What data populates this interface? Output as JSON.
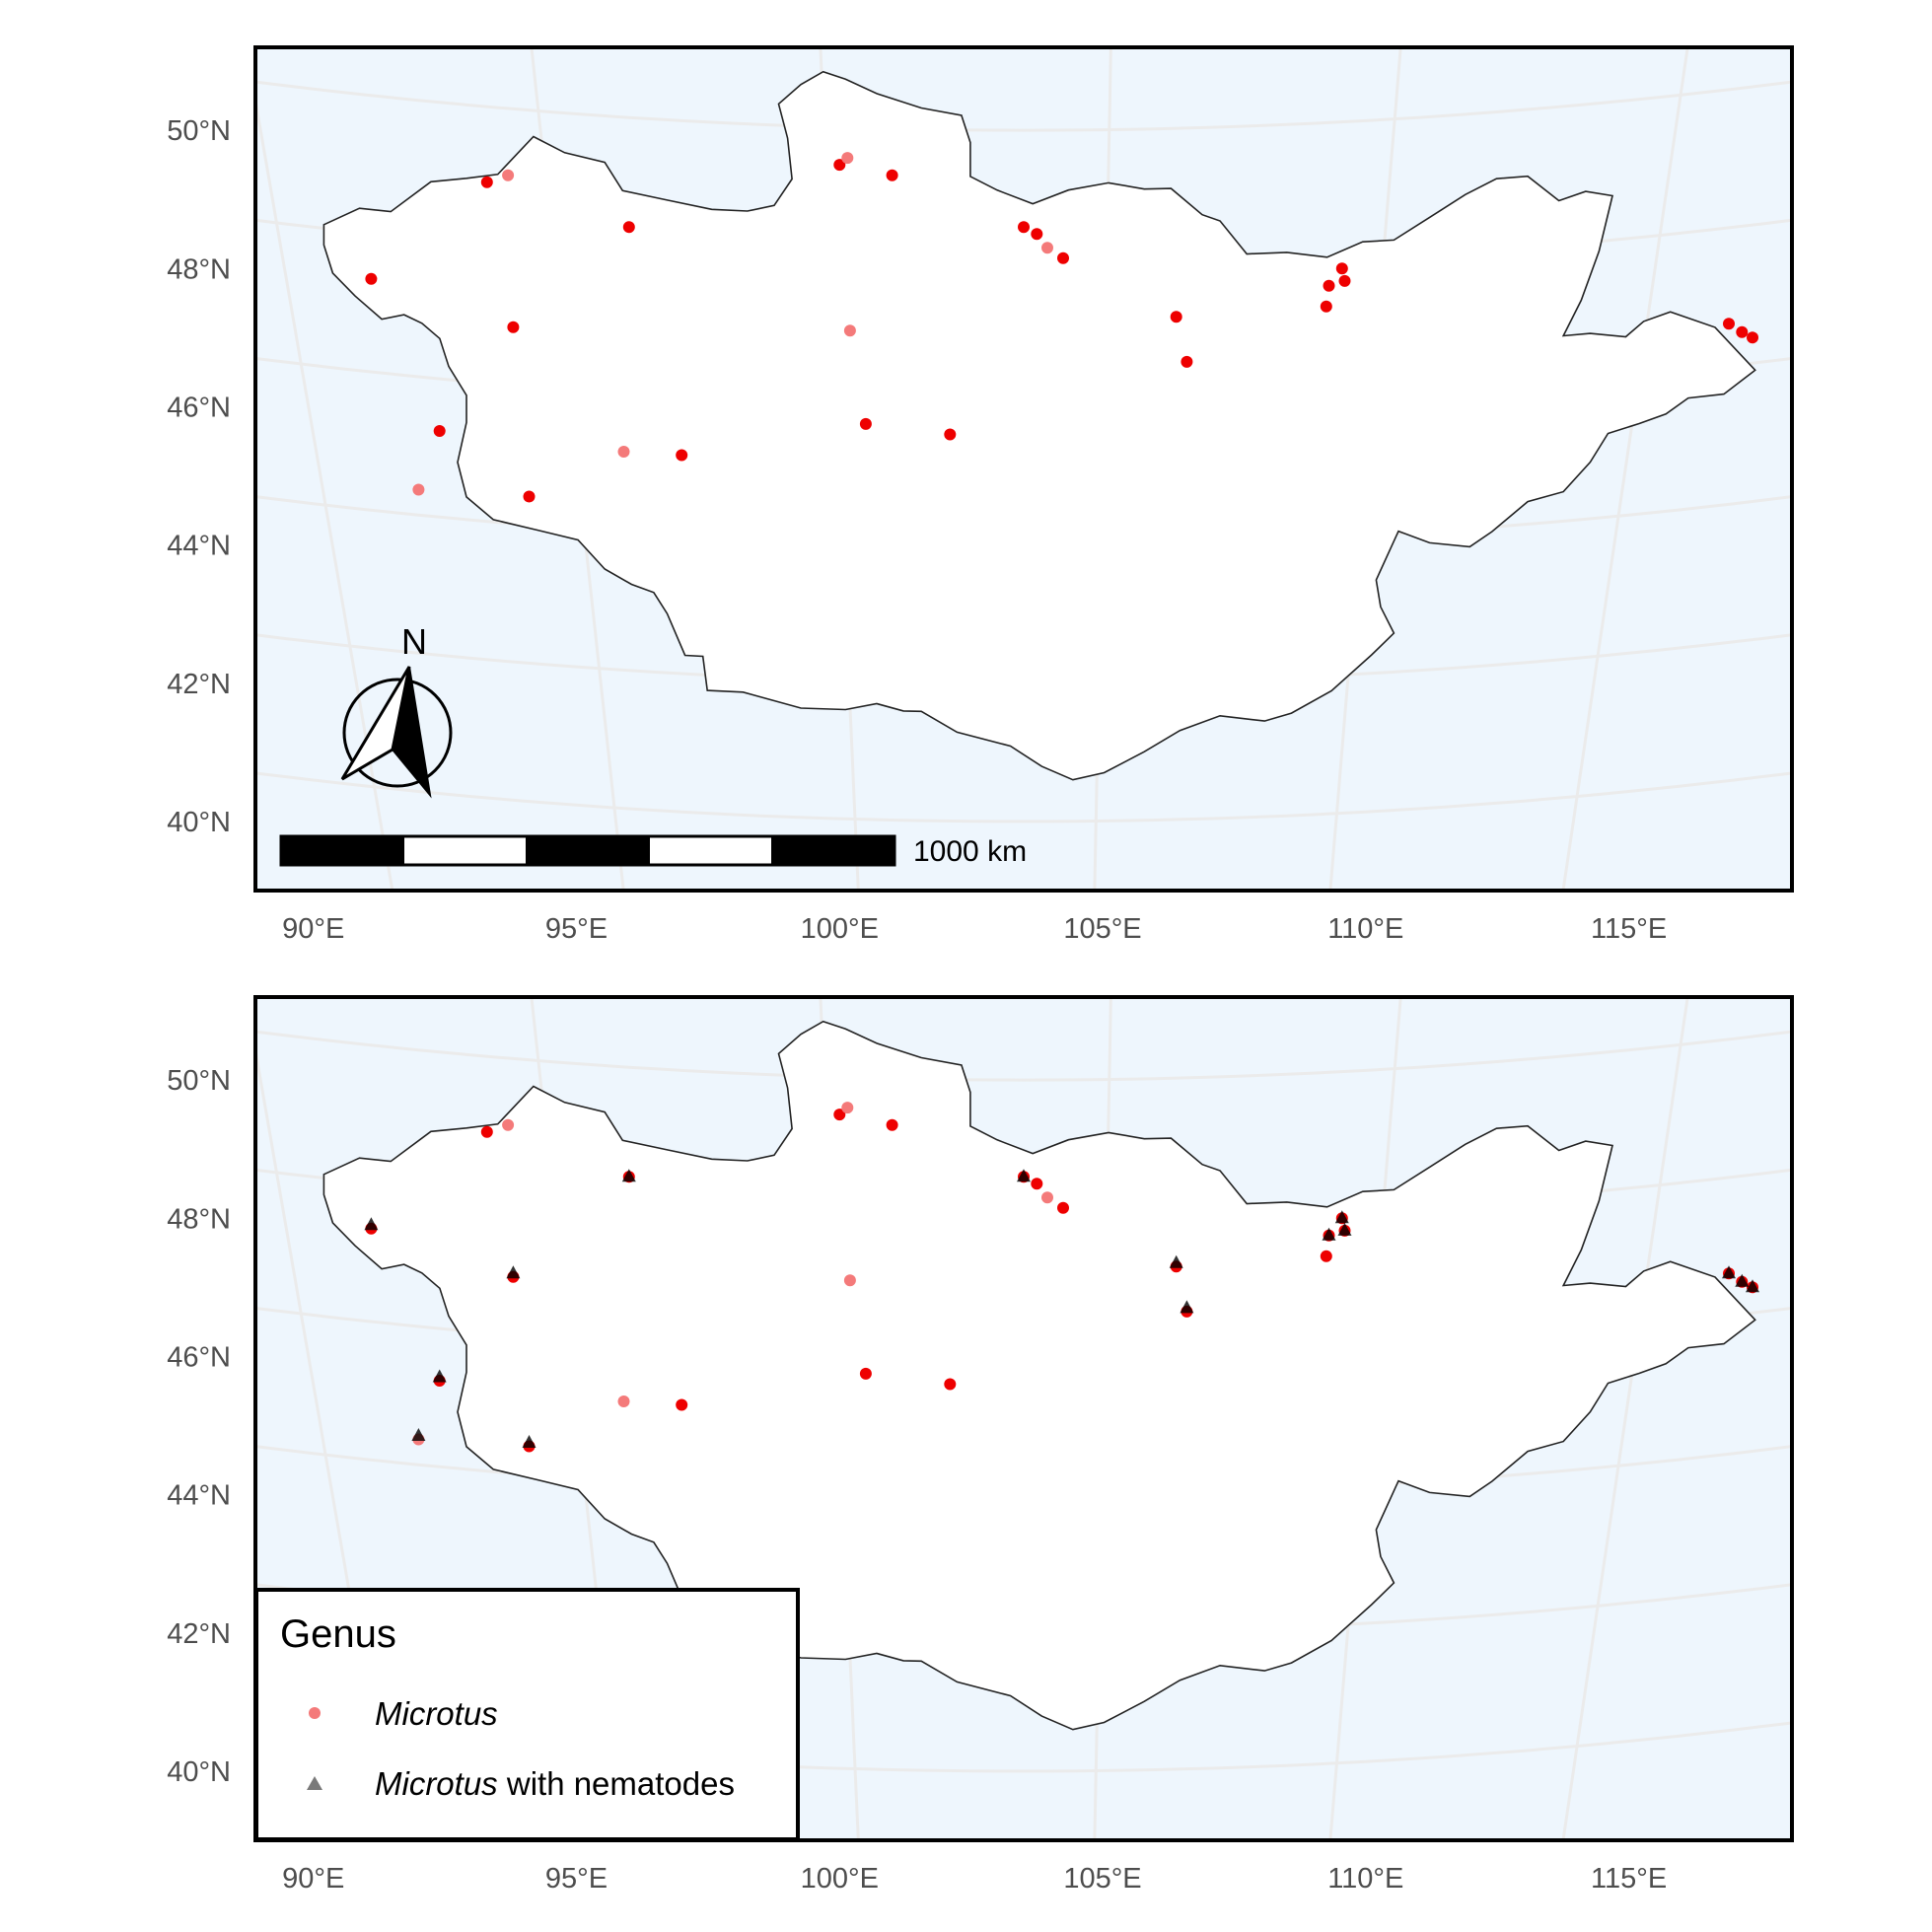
{
  "x_ticks": [
    "90°E",
    "95°E",
    "100°E",
    "105°E",
    "110°E",
    "115°E"
  ],
  "y_ticks": [
    "40°N",
    "42°N",
    "44°N",
    "46°N",
    "48°N",
    "50°N"
  ],
  "scale_bar": {
    "label": "1000 km"
  },
  "north_arrow": {
    "label": "N"
  },
  "legend": {
    "title": "Genus",
    "items": [
      {
        "italic": "Microtus",
        "rest": ""
      },
      {
        "italic": "Microtus",
        "rest": " with nematodes"
      }
    ]
  },
  "colors": {
    "ocean": "#eef6fd",
    "land": "#ffffff",
    "graticule": "#ebebeb",
    "point_bright": "#ee0000",
    "point_light": "#f47a7a",
    "triangle": "#000000",
    "legend_triangle": "#7a7a7a"
  },
  "chart_data": [
    {
      "type": "scatter",
      "panel": "top",
      "x_axis": "longitude (°E)",
      "y_axis": "latitude (°N)",
      "xlim": [
        88.9,
        118.1
      ],
      "ylim": [
        39.0,
        51.2
      ],
      "points": [
        {
          "lon": 91.1,
          "lat": 47.85,
          "shade": "bright"
        },
        {
          "lon": 93.3,
          "lat": 49.25,
          "shade": "bright"
        },
        {
          "lon": 93.7,
          "lat": 49.35,
          "shade": "light"
        },
        {
          "lon": 96.0,
          "lat": 48.6,
          "shade": "bright"
        },
        {
          "lon": 93.8,
          "lat": 47.15,
          "shade": "bright"
        },
        {
          "lon": 92.4,
          "lat": 45.65,
          "shade": "bright"
        },
        {
          "lon": 92.0,
          "lat": 44.8,
          "shade": "light"
        },
        {
          "lon": 94.1,
          "lat": 44.7,
          "shade": "bright"
        },
        {
          "lon": 95.9,
          "lat": 45.35,
          "shade": "light"
        },
        {
          "lon": 97.0,
          "lat": 45.3,
          "shade": "bright"
        },
        {
          "lon": 100.0,
          "lat": 49.5,
          "shade": "bright"
        },
        {
          "lon": 100.15,
          "lat": 49.6,
          "shade": "light"
        },
        {
          "lon": 101.0,
          "lat": 49.35,
          "shade": "bright"
        },
        {
          "lon": 100.2,
          "lat": 47.1,
          "shade": "light"
        },
        {
          "lon": 100.5,
          "lat": 45.75,
          "shade": "bright"
        },
        {
          "lon": 102.1,
          "lat": 45.6,
          "shade": "bright"
        },
        {
          "lon": 103.5,
          "lat": 48.6,
          "shade": "bright"
        },
        {
          "lon": 103.75,
          "lat": 48.5,
          "shade": "bright"
        },
        {
          "lon": 103.95,
          "lat": 48.3,
          "shade": "light"
        },
        {
          "lon": 104.25,
          "lat": 48.15,
          "shade": "bright"
        },
        {
          "lon": 106.4,
          "lat": 47.3,
          "shade": "bright"
        },
        {
          "lon": 106.6,
          "lat": 46.65,
          "shade": "bright"
        },
        {
          "lon": 109.3,
          "lat": 47.75,
          "shade": "bright"
        },
        {
          "lon": 109.55,
          "lat": 48.0,
          "shade": "bright"
        },
        {
          "lon": 109.6,
          "lat": 47.82,
          "shade": "bright"
        },
        {
          "lon": 109.25,
          "lat": 47.45,
          "shade": "bright"
        },
        {
          "lon": 116.9,
          "lat": 47.2,
          "shade": "bright"
        },
        {
          "lon": 117.15,
          "lat": 47.08,
          "shade": "bright"
        },
        {
          "lon": 117.35,
          "lat": 47.0,
          "shade": "bright"
        }
      ]
    },
    {
      "type": "scatter",
      "panel": "bottom",
      "x_axis": "longitude (°E)",
      "y_axis": "latitude (°N)",
      "xlim": [
        88.9,
        118.1
      ],
      "ylim": [
        39.0,
        51.2
      ],
      "series": [
        {
          "name": "Microtus",
          "marker": "circle",
          "points": [
            {
              "lon": 91.1,
              "lat": 47.85,
              "shade": "bright"
            },
            {
              "lon": 93.3,
              "lat": 49.25,
              "shade": "bright"
            },
            {
              "lon": 93.7,
              "lat": 49.35,
              "shade": "light"
            },
            {
              "lon": 96.0,
              "lat": 48.6,
              "shade": "bright"
            },
            {
              "lon": 93.8,
              "lat": 47.15,
              "shade": "bright"
            },
            {
              "lon": 92.4,
              "lat": 45.65,
              "shade": "bright"
            },
            {
              "lon": 92.0,
              "lat": 44.8,
              "shade": "light"
            },
            {
              "lon": 94.1,
              "lat": 44.7,
              "shade": "bright"
            },
            {
              "lon": 95.9,
              "lat": 45.35,
              "shade": "light"
            },
            {
              "lon": 97.0,
              "lat": 45.3,
              "shade": "bright"
            },
            {
              "lon": 100.0,
              "lat": 49.5,
              "shade": "bright"
            },
            {
              "lon": 100.15,
              "lat": 49.6,
              "shade": "light"
            },
            {
              "lon": 101.0,
              "lat": 49.35,
              "shade": "bright"
            },
            {
              "lon": 100.2,
              "lat": 47.1,
              "shade": "light"
            },
            {
              "lon": 100.5,
              "lat": 45.75,
              "shade": "bright"
            },
            {
              "lon": 102.1,
              "lat": 45.6,
              "shade": "bright"
            },
            {
              "lon": 103.5,
              "lat": 48.6,
              "shade": "bright"
            },
            {
              "lon": 103.75,
              "lat": 48.5,
              "shade": "bright"
            },
            {
              "lon": 103.95,
              "lat": 48.3,
              "shade": "light"
            },
            {
              "lon": 104.25,
              "lat": 48.15,
              "shade": "bright"
            },
            {
              "lon": 106.4,
              "lat": 47.3,
              "shade": "bright"
            },
            {
              "lon": 106.6,
              "lat": 46.65,
              "shade": "bright"
            },
            {
              "lon": 109.3,
              "lat": 47.75,
              "shade": "bright"
            },
            {
              "lon": 109.55,
              "lat": 48.0,
              "shade": "bright"
            },
            {
              "lon": 109.6,
              "lat": 47.82,
              "shade": "bright"
            },
            {
              "lon": 109.25,
              "lat": 47.45,
              "shade": "bright"
            },
            {
              "lon": 116.9,
              "lat": 47.2,
              "shade": "bright"
            },
            {
              "lon": 117.15,
              "lat": 47.08,
              "shade": "bright"
            },
            {
              "lon": 117.35,
              "lat": 47.0,
              "shade": "bright"
            }
          ]
        },
        {
          "name": "Microtus with nematodes",
          "marker": "triangle",
          "points": [
            {
              "lon": 91.1,
              "lat": 47.9
            },
            {
              "lon": 96.0,
              "lat": 48.6
            },
            {
              "lon": 93.8,
              "lat": 47.2
            },
            {
              "lon": 92.4,
              "lat": 45.7
            },
            {
              "lon": 92.0,
              "lat": 44.85
            },
            {
              "lon": 94.1,
              "lat": 44.75
            },
            {
              "lon": 103.5,
              "lat": 48.6
            },
            {
              "lon": 106.4,
              "lat": 47.35
            },
            {
              "lon": 106.6,
              "lat": 46.7
            },
            {
              "lon": 109.3,
              "lat": 47.75
            },
            {
              "lon": 109.55,
              "lat": 48.0
            },
            {
              "lon": 109.6,
              "lat": 47.82
            },
            {
              "lon": 116.9,
              "lat": 47.2
            },
            {
              "lon": 117.15,
              "lat": 47.08
            },
            {
              "lon": 117.35,
              "lat": 47.0
            }
          ]
        }
      ]
    }
  ]
}
